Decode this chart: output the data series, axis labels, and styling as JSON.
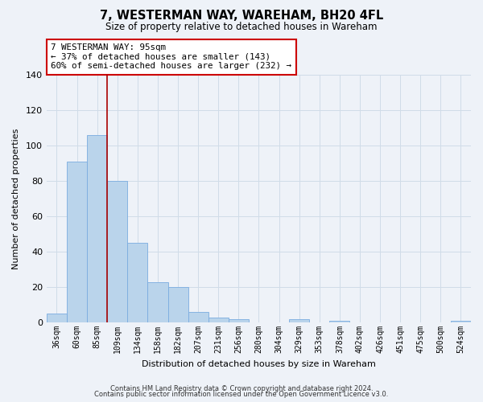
{
  "title": "7, WESTERMAN WAY, WAREHAM, BH20 4FL",
  "subtitle": "Size of property relative to detached houses in Wareham",
  "xlabel": "Distribution of detached houses by size in Wareham",
  "ylabel": "Number of detached properties",
  "bar_labels": [
    "36sqm",
    "60sqm",
    "85sqm",
    "109sqm",
    "134sqm",
    "158sqm",
    "182sqm",
    "207sqm",
    "231sqm",
    "256sqm",
    "280sqm",
    "304sqm",
    "329sqm",
    "353sqm",
    "378sqm",
    "402sqm",
    "426sqm",
    "451sqm",
    "475sqm",
    "500sqm",
    "524sqm"
  ],
  "bar_heights": [
    5,
    91,
    106,
    80,
    45,
    23,
    20,
    6,
    3,
    2,
    0,
    0,
    2,
    0,
    1,
    0,
    0,
    0,
    0,
    0,
    1
  ],
  "bar_color": "#bad4eb",
  "bar_edge_color": "#7aace0",
  "highlight_line_color": "#aa0000",
  "ylim": [
    0,
    140
  ],
  "yticks": [
    0,
    20,
    40,
    60,
    80,
    100,
    120,
    140
  ],
  "annotation_line1": "7 WESTERMAN WAY: 95sqm",
  "annotation_line2": "← 37% of detached houses are smaller (143)",
  "annotation_line3": "60% of semi-detached houses are larger (232) →",
  "footer_line1": "Contains HM Land Registry data © Crown copyright and database right 2024.",
  "footer_line2": "Contains public sector information licensed under the Open Government Licence v3.0.",
  "grid_color": "#d0dce8",
  "background_color": "#eef2f8",
  "plot_bg_color": "#eef2f8"
}
